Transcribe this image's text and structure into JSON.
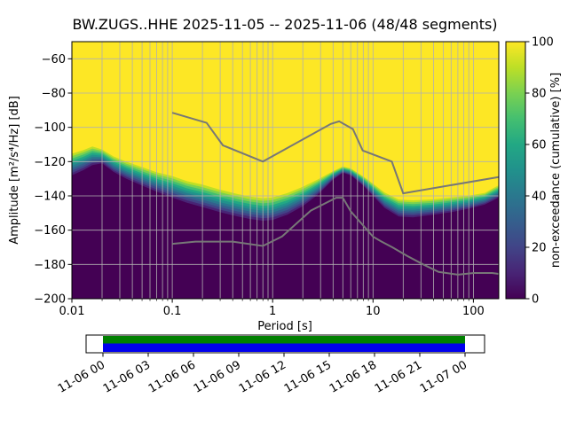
{
  "chart_data": {
    "type": "heatmap",
    "variant": "ppsd_cumulative_distribution",
    "title": "BW.ZUGS..HHE   2025-11-05 -- 2025-11-06  (48/48 segments)",
    "xlabel": "Period [s]",
    "ylabel": "Amplitude [m²/s⁴/Hz] [dB]",
    "xscale": "log",
    "xlim": [
      0.01,
      179
    ],
    "ylim": [
      -200,
      -50
    ],
    "grid": true,
    "xticks": {
      "values": [
        0.01,
        0.1,
        1,
        10,
        100
      ],
      "labels": [
        "0.01",
        "0.1",
        "1",
        "10",
        "100"
      ]
    },
    "yticks": {
      "values": [
        -200,
        -180,
        -160,
        -140,
        -120,
        -100,
        -80,
        -60
      ],
      "labels": [
        "−200",
        "−180",
        "−160",
        "−140",
        "−120",
        "−100",
        "−80",
        "−60"
      ]
    },
    "colorbar": {
      "label": "non-exceedance (cumulative) [%]",
      "ticks": {
        "values": [
          0,
          20,
          40,
          60,
          80,
          100
        ],
        "labels": [
          "0",
          "20",
          "40",
          "60",
          "80",
          "100"
        ]
      },
      "colormap": "viridis",
      "stops": [
        [
          0,
          "#440154"
        ],
        [
          0.1,
          "#482475"
        ],
        [
          0.2,
          "#414487"
        ],
        [
          0.3,
          "#355f8d"
        ],
        [
          0.4,
          "#2a788e"
        ],
        [
          0.5,
          "#21918c"
        ],
        [
          0.6,
          "#22a884"
        ],
        [
          0.7,
          "#44bf70"
        ],
        [
          0.8,
          "#7ad151"
        ],
        [
          0.9,
          "#bddf26"
        ],
        [
          1,
          "#fde725"
        ]
      ]
    },
    "distribution": {
      "periods": [
        0.01,
        0.013,
        0.016,
        0.02,
        0.026,
        0.035,
        0.05,
        0.07,
        0.1,
        0.14,
        0.2,
        0.3,
        0.45,
        0.6,
        0.8,
        1.0,
        1.4,
        2.0,
        2.8,
        4.0,
        5.0,
        6.0,
        8.0,
        10,
        13,
        18,
        25,
        40,
        60,
        90,
        130,
        160,
        179
      ],
      "psd_min_db": [
        -128,
        -125,
        -122,
        -121,
        -126,
        -130,
        -134,
        -137.5,
        -141,
        -144,
        -146.5,
        -149.5,
        -152,
        -153.5,
        -154.5,
        -154,
        -151,
        -146,
        -139.5,
        -130.5,
        -126.5,
        -128,
        -134,
        -140,
        -147,
        -152,
        -152.5,
        -151,
        -149.5,
        -147.5,
        -145,
        -142.5,
        -141
      ],
      "psd_max_db": [
        -114,
        -112,
        -110,
        -112,
        -116,
        -119,
        -122,
        -125,
        -127,
        -130,
        -132,
        -135,
        -137.5,
        -139,
        -140,
        -139.5,
        -137,
        -133.5,
        -129.5,
        -125,
        -122.5,
        -123.5,
        -128,
        -132,
        -137,
        -141,
        -141.5,
        -141,
        -140,
        -139,
        -137.5,
        -134.5,
        -133
      ]
    },
    "noise_models": {
      "color": "#777777",
      "nhnm": {
        "periods": [
          0.1,
          0.22,
          0.32,
          0.8,
          3.8,
          4.6,
          6.3,
          7.9,
          15.4,
          20,
          179
        ],
        "db": [
          -91.5,
          -97.4,
          -110.5,
          -120,
          -98,
          -96.5,
          -101,
          -113.5,
          -120,
          -138.5,
          -129
        ]
      },
      "nlnm": {
        "periods": [
          0.1,
          0.17,
          0.4,
          0.8,
          1.24,
          2.4,
          4.3,
          5,
          6,
          10,
          12,
          15.6,
          21.9,
          31.6,
          45,
          70,
          101,
          154,
          179
        ],
        "db": [
          -168,
          -166.7,
          -166.7,
          -169.2,
          -163.7,
          -148.6,
          -141.1,
          -141.1,
          -149,
          -163.8,
          -166.5,
          -170,
          -175,
          -180,
          -184.4,
          -186,
          -185,
          -185,
          -185.5
        ]
      }
    }
  },
  "coverage_bar": {
    "tick_labels": [
      "11-06 00",
      "11-06 03",
      "11-06 06",
      "11-06 09",
      "11-06 12",
      "11-06 15",
      "11-06 18",
      "11-06 21",
      "11-07 00"
    ],
    "segment_color_top": "#008000",
    "segment_color_bottom": "#0000ee",
    "coverage": "full"
  }
}
